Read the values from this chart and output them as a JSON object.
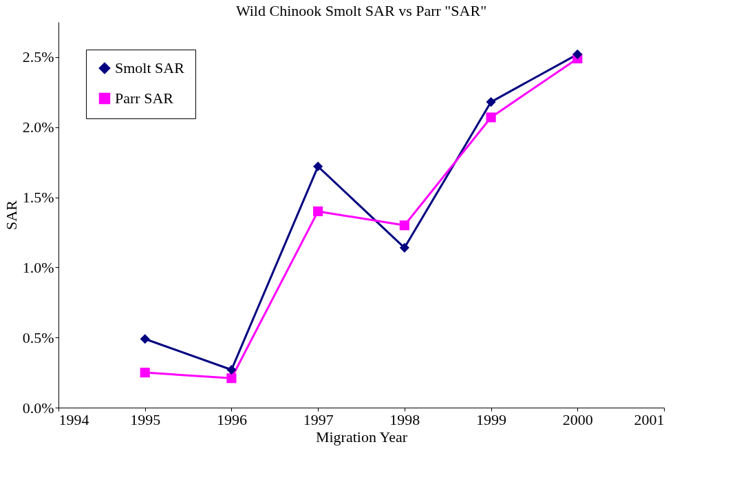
{
  "chart_data": {
    "type": "line",
    "title": "Wild Chinook Smolt SAR vs Parr \"SAR\"",
    "xlabel": "Migration Year",
    "ylabel": "SAR",
    "x": [
      1995,
      1996,
      1997,
      1998,
      1999,
      2000
    ],
    "series": [
      {
        "name": "Smolt SAR",
        "color": "#000080",
        "marker": "diamond",
        "values": [
          0.49,
          0.27,
          1.72,
          1.14,
          2.18,
          2.52
        ]
      },
      {
        "name": "Parr SAR",
        "color": "#ff00ff",
        "marker": "square",
        "values": [
          0.25,
          0.21,
          1.4,
          1.3,
          2.07,
          2.49
        ]
      }
    ],
    "xlim": [
      1994,
      2001
    ],
    "xticks": [
      1994,
      1995,
      1996,
      1997,
      1998,
      1999,
      2000,
      2001
    ],
    "ylim": [
      0,
      2.75
    ],
    "yticks": [
      {
        "value": 0,
        "label": "0.0%"
      },
      {
        "value": 0.5,
        "label": "0.5%"
      },
      {
        "value": 1.0,
        "label": "1.0%"
      },
      {
        "value": 1.5,
        "label": "1.5%"
      },
      {
        "value": 2.0,
        "label": "2.0%"
      },
      {
        "value": 2.5,
        "label": "2.5%"
      }
    ],
    "grid": false,
    "legend": "top left",
    "line_style": "solid"
  }
}
